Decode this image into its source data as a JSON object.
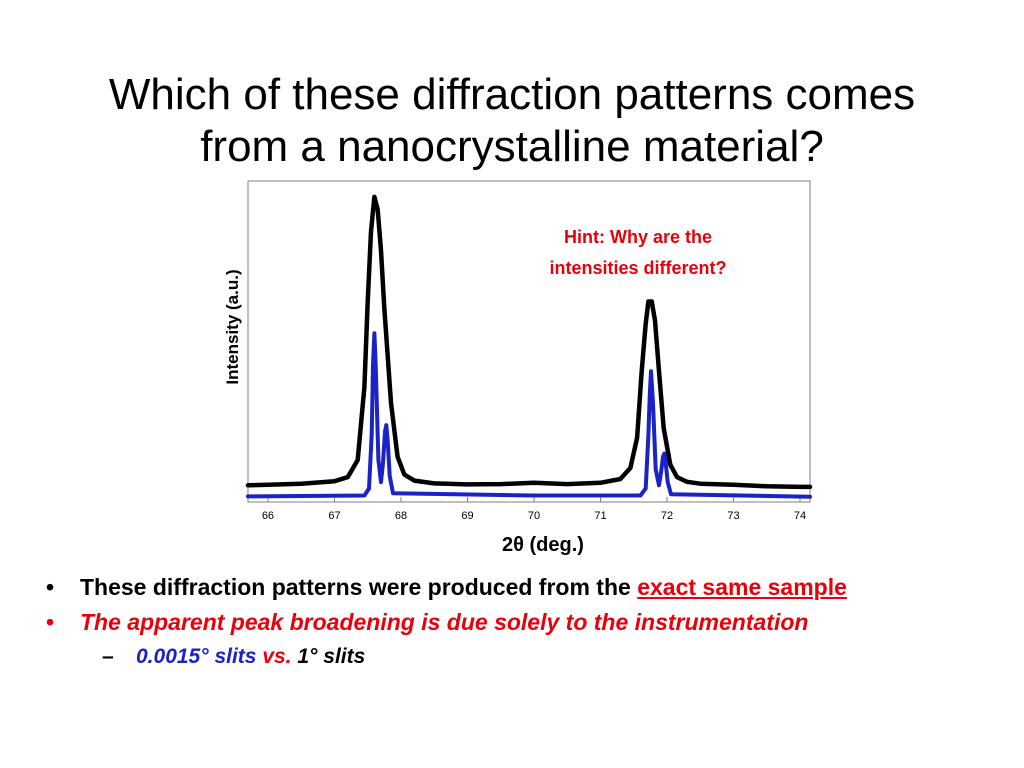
{
  "title": {
    "line1": "Which of these diffraction patterns comes",
    "line2": "from a nanocrystalline material?"
  },
  "chart_data": {
    "type": "line",
    "xlabel": "2θ (deg.)",
    "ylabel": "Intensity (a.u.)",
    "xlim": [
      65.7,
      74.15
    ],
    "ylim": [
      0,
      100
    ],
    "xticks": [
      66,
      67,
      68,
      69,
      70,
      71,
      72,
      73,
      74
    ],
    "grid": false,
    "annotation": {
      "line1": "Hint: Why are the",
      "line2": "intensities different?"
    },
    "series": [
      {
        "color": "#000000",
        "x": [
          65.7,
          66.0,
          66.5,
          67.0,
          67.2,
          67.35,
          67.45,
          67.5,
          67.55,
          67.6,
          67.65,
          67.7,
          67.75,
          67.85,
          67.95,
          68.05,
          68.2,
          68.5,
          69.0,
          69.5,
          70.0,
          70.5,
          71.0,
          71.3,
          71.45,
          71.55,
          71.62,
          71.68,
          71.72,
          71.77,
          71.82,
          71.88,
          71.95,
          72.05,
          72.15,
          72.3,
          72.5,
          73.0,
          73.5,
          74.0,
          74.15
        ],
        "y": [
          4.0,
          4.2,
          4.5,
          5.3,
          6.6,
          12.0,
          35.0,
          62.0,
          84.0,
          95.0,
          91.0,
          78.0,
          60.0,
          30.0,
          13.0,
          7.4,
          5.5,
          4.6,
          4.3,
          4.4,
          4.8,
          4.4,
          4.8,
          6.0,
          9.5,
          19.0,
          40.0,
          55.0,
          62.0,
          62.0,
          56.0,
          40.0,
          22.0,
          10.5,
          6.6,
          5.1,
          4.5,
          4.2,
          3.7,
          3.5,
          3.5
        ]
      },
      {
        "color": "#1a22c8",
        "x": [
          65.7,
          67.45,
          67.52,
          67.56,
          67.58,
          67.6,
          67.62,
          67.66,
          67.7,
          67.73,
          67.76,
          67.78,
          67.8,
          67.83,
          67.88,
          70.0,
          71.6,
          71.68,
          71.72,
          71.74,
          71.76,
          71.79,
          71.83,
          71.88,
          71.91,
          71.94,
          71.96,
          71.98,
          72.01,
          72.06,
          74.15
        ],
        "y": [
          0.5,
          0.8,
          3.0,
          20.0,
          42.0,
          52.0,
          42.0,
          12.0,
          5.0,
          11.0,
          21.0,
          23.0,
          18.0,
          7.0,
          1.5,
          0.8,
          0.8,
          3.0,
          20.0,
          32.0,
          40.0,
          30.0,
          9.0,
          4.0,
          8.0,
          13.0,
          14.0,
          11.0,
          5.0,
          1.2,
          0.4
        ]
      }
    ]
  },
  "bullets": [
    {
      "marker": "•",
      "text": "These diffraction patterns were produced from the ",
      "highlight": "exact same sample"
    },
    {
      "marker": "•",
      "text": "The apparent peak broadening is due solely to the instrumentation"
    }
  ],
  "sub_bullet": {
    "marker": "–",
    "part1": "0.0015° slits",
    "part2": " vs. ",
    "part3": "1° slits"
  },
  "colors": {
    "accent_red": "#e8000b",
    "series_blue": "#1a22c8",
    "frame": "#7f7f7f"
  }
}
